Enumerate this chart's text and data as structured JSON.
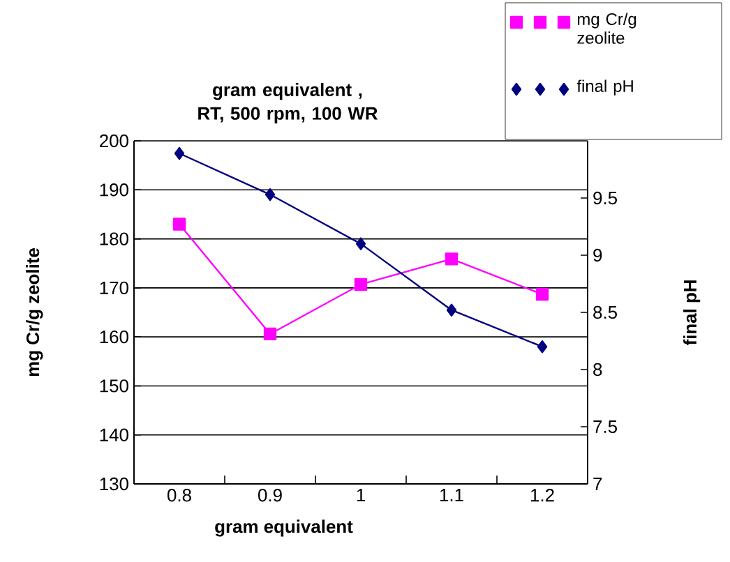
{
  "chart_data": {
    "type": "line",
    "title": "gram equivalent , RT, 500 rpm, 100 WR",
    "xlabel": "gram equivalent",
    "ylabel": "mg Cr/g zeolite",
    "y2label": "final pH",
    "categories": [
      "0.8",
      "0.9",
      "1",
      "1.1",
      "1.2"
    ],
    "series": [
      {
        "name": "mg Cr/g zeolite",
        "color": "#ff00ff",
        "marker": "square",
        "values": [
          183,
          160.6,
          170.7,
          175.9,
          168.7
        ]
      },
      {
        "name": "final pH",
        "color": "#000080",
        "marker": "diamond",
        "axis": "y2",
        "values": [
          9.89,
          9.53,
          9.1,
          8.52,
          8.2
        ]
      }
    ],
    "ylim": [
      130,
      200
    ],
    "yticks": [
      130,
      140,
      150,
      160,
      170,
      180,
      190,
      200
    ],
    "y2lim": [
      7,
      10
    ],
    "y2ticks": [
      7,
      7.5,
      8,
      8.5,
      9,
      9.5
    ],
    "grid": "y",
    "legend": "top right"
  }
}
